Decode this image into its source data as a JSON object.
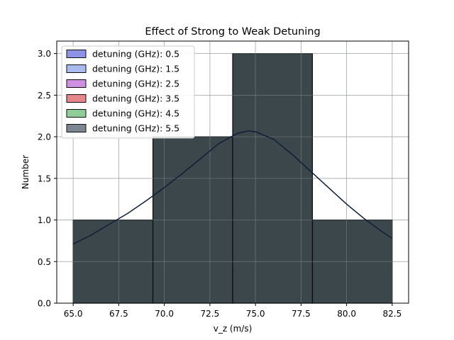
{
  "chart_data": {
    "type": "histogram",
    "title": "Effect of Strong to Weak Detuning",
    "xlabel": "v_z (m/s)",
    "ylabel": "Number",
    "xlim": [
      64.1,
      83.4
    ],
    "ylim": [
      0,
      3.15
    ],
    "xticks": [
      65.0,
      67.5,
      70.0,
      72.5,
      75.0,
      77.5,
      80.0,
      82.5
    ],
    "xtick_labels": [
      "65.0",
      "67.5",
      "70.0",
      "72.5",
      "75.0",
      "77.5",
      "80.0",
      "82.5"
    ],
    "yticks": [
      0.0,
      0.5,
      1.0,
      1.5,
      2.0,
      2.5,
      3.0
    ],
    "ytick_labels": [
      "0.0",
      "0.5",
      "1.0",
      "1.5",
      "2.0",
      "2.5",
      "3.0"
    ],
    "grid": true,
    "legend_position": "top-left",
    "bins": [
      {
        "start": 65.0,
        "end": 69.375,
        "count": 1
      },
      {
        "start": 69.375,
        "end": 73.75,
        "count": 2
      },
      {
        "start": 73.75,
        "end": 78.125,
        "count": 3
      },
      {
        "start": 78.125,
        "end": 82.5,
        "count": 1
      }
    ],
    "bar_color": "#374346",
    "kde_color": "#0e1f3a",
    "kde": {
      "x": [
        65.0,
        66.0,
        67.0,
        68.0,
        69.0,
        70.0,
        71.0,
        72.0,
        73.0,
        74.0,
        74.6,
        75.0,
        76.0,
        77.0,
        78.0,
        79.0,
        80.0,
        81.0,
        82.0,
        82.5
      ],
      "y": [
        0.71,
        0.82,
        0.95,
        1.08,
        1.23,
        1.39,
        1.56,
        1.74,
        1.92,
        2.04,
        2.07,
        2.06,
        1.97,
        1.79,
        1.59,
        1.39,
        1.19,
        1.01,
        0.85,
        0.78
      ]
    },
    "series": [
      {
        "name": "detuning (GHz): 0.5",
        "color": "#8d92e6"
      },
      {
        "name": "detuning (GHz): 1.5",
        "color": "#a9bbee"
      },
      {
        "name": "detuning (GHz): 2.5",
        "color": "#cf8fe0"
      },
      {
        "name": "detuning (GHz): 3.5",
        "color": "#e5868c"
      },
      {
        "name": "detuning (GHz): 4.5",
        "color": "#8fce99"
      },
      {
        "name": "detuning (GHz): 5.5",
        "color": "#7c8592"
      }
    ]
  }
}
